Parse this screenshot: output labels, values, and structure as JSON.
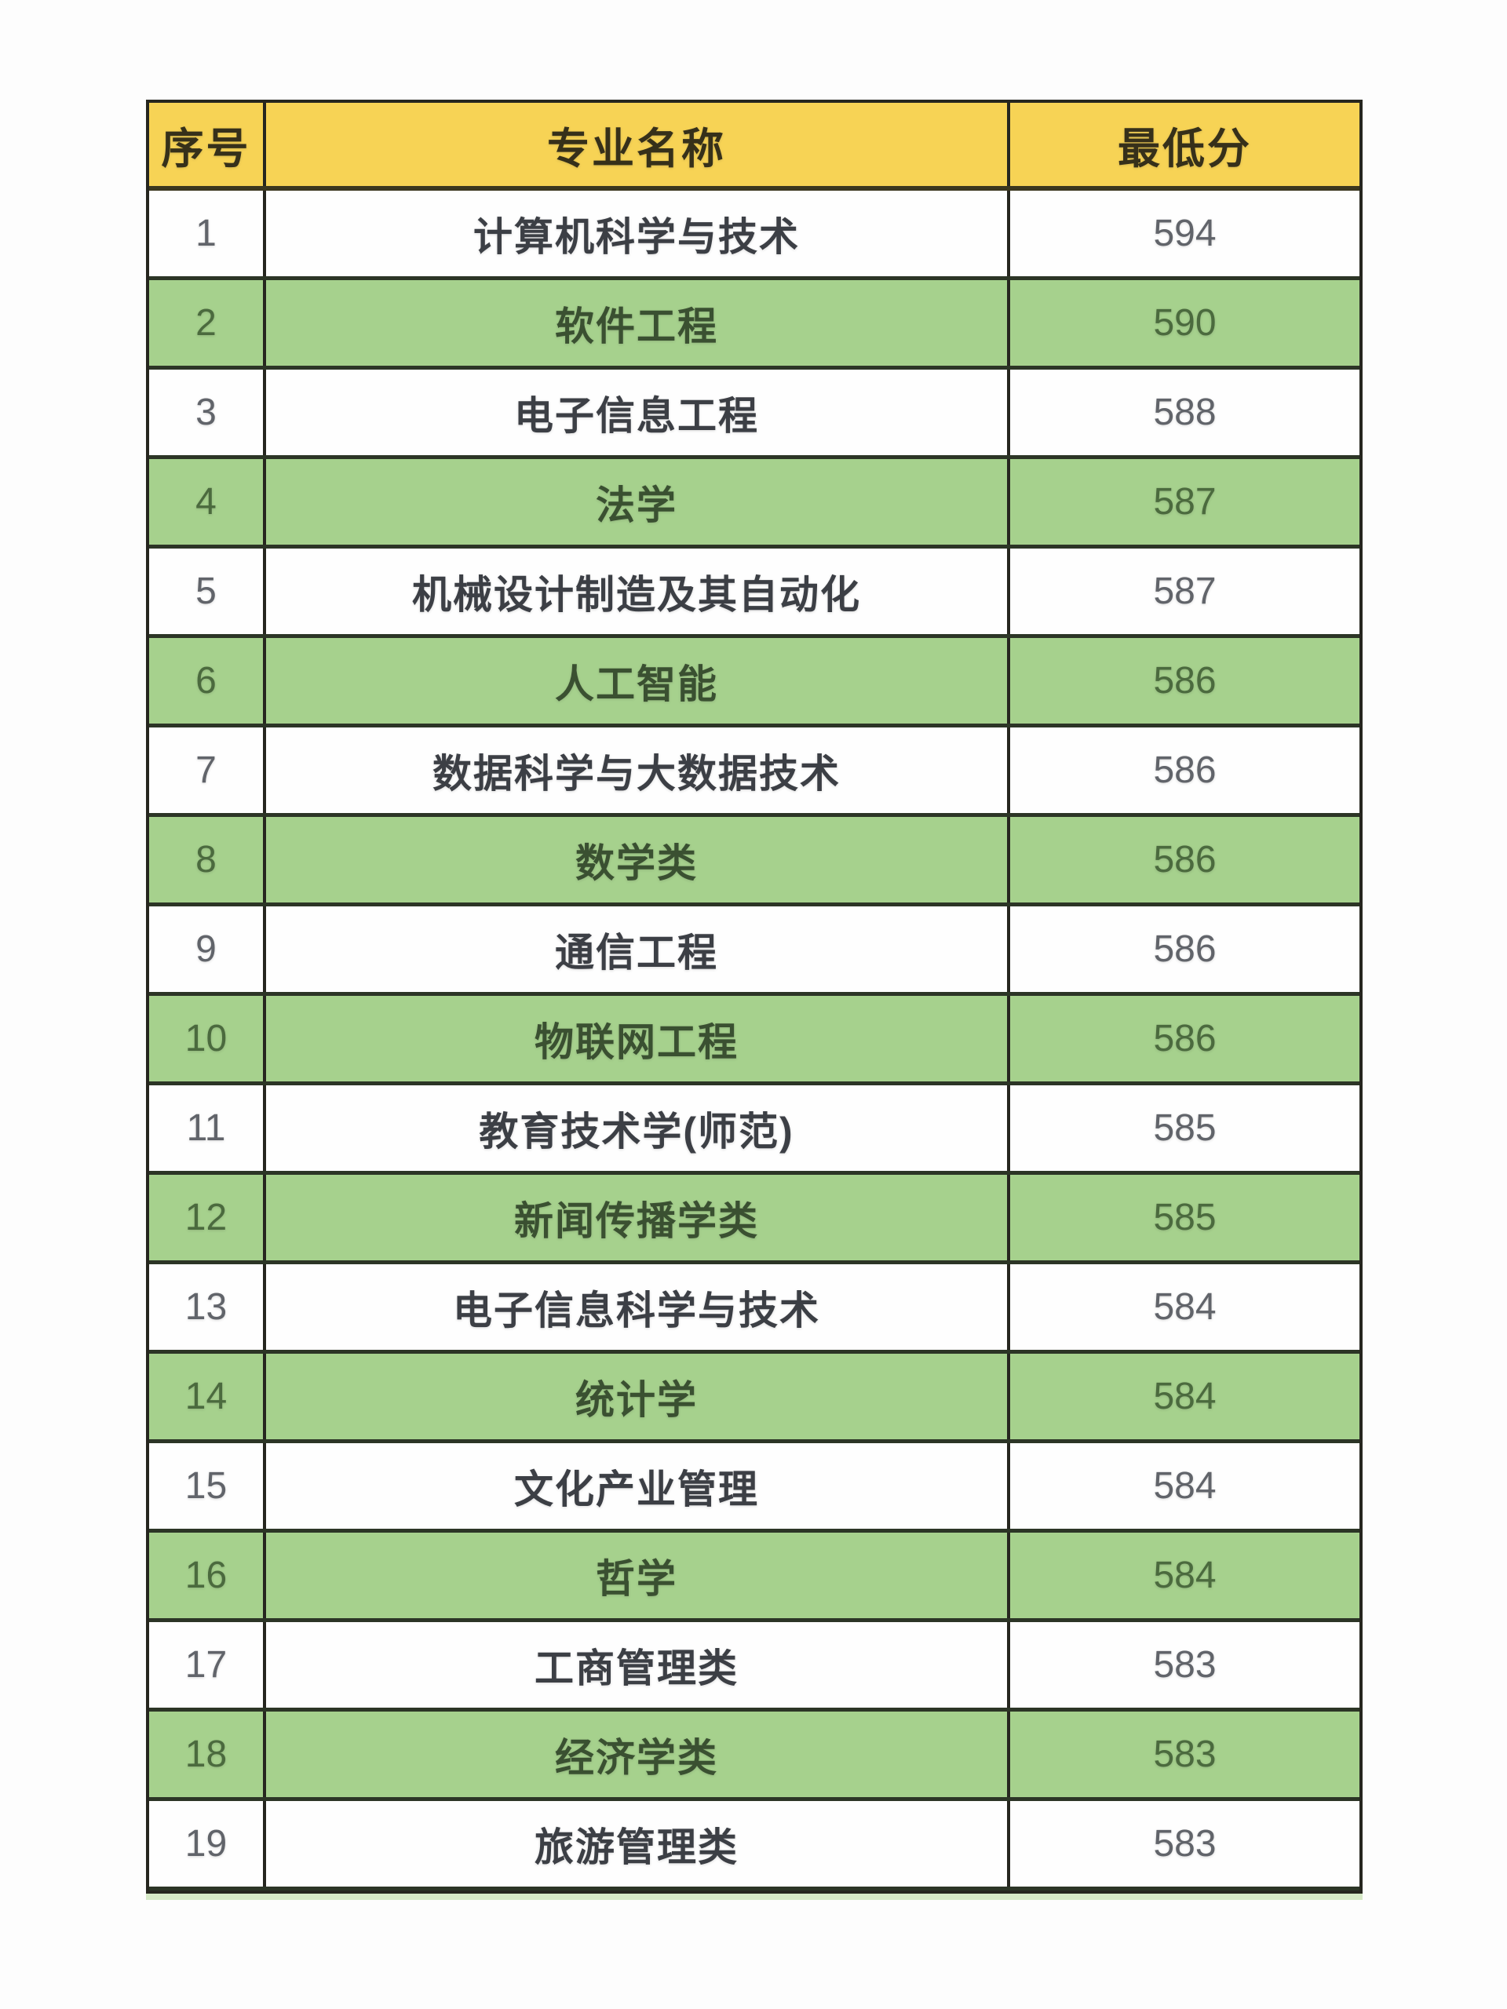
{
  "page": {
    "background": "#fdfdfd"
  },
  "table": {
    "headers": [
      "序号",
      "专业名称",
      "最低分"
    ],
    "rows": [
      {
        "no": "1",
        "major": "计算机科学与技术",
        "score": "594",
        "highlighted": false
      },
      {
        "no": "2",
        "major": "软件工程",
        "score": "590",
        "highlighted": true
      },
      {
        "no": "3",
        "major": "电子信息工程",
        "score": "588",
        "highlighted": false
      },
      {
        "no": "4",
        "major": "法学",
        "score": "587",
        "highlighted": true
      },
      {
        "no": "5",
        "major": "机械设计制造及其自动化",
        "score": "587",
        "highlighted": false
      },
      {
        "no": "6",
        "major": "人工智能",
        "score": "586",
        "highlighted": true
      },
      {
        "no": "7",
        "major": "数据科学与大数据技术",
        "score": "586",
        "highlighted": false
      },
      {
        "no": "8",
        "major": "数学类",
        "score": "586",
        "highlighted": true
      },
      {
        "no": "9",
        "major": "通信工程",
        "score": "586",
        "highlighted": false
      },
      {
        "no": "10",
        "major": "物联网工程",
        "score": "586",
        "highlighted": true
      },
      {
        "no": "11",
        "major": "教育技术学(师范)",
        "score": "585",
        "highlighted": false
      },
      {
        "no": "12",
        "major": "新闻传播学类",
        "score": "585",
        "highlighted": true
      },
      {
        "no": "13",
        "major": "电子信息科学与技术",
        "score": "584",
        "highlighted": false
      },
      {
        "no": "14",
        "major": "统计学",
        "score": "584",
        "highlighted": true
      },
      {
        "no": "15",
        "major": "文化产业管理",
        "score": "584",
        "highlighted": false
      },
      {
        "no": "16",
        "major": "哲学",
        "score": "584",
        "highlighted": true
      },
      {
        "no": "17",
        "major": "工商管理类",
        "score": "583",
        "highlighted": false
      },
      {
        "no": "18",
        "major": "经济学类",
        "score": "583",
        "highlighted": true
      },
      {
        "no": "19",
        "major": "旅游管理类",
        "score": "583",
        "highlighted": false
      }
    ],
    "colors": {
      "page_bg": "#fdfdfd",
      "header_bg": "#f7d355",
      "header_text": "#36301a",
      "green_row_bg": "#a6d18d",
      "white_row_bg": "#fefefe",
      "border": "#26261f",
      "row_divider": "#2c3526",
      "white_row_text": "#3c3f45",
      "green_row_text": "#3a5031",
      "white_num_text": "#61646a",
      "green_num_text": "#4b6a3e",
      "bottom_edge": "#cfe5bd"
    }
  },
  "chart_data": {
    "type": "table",
    "columns": [
      "序号",
      "专业名称",
      "最低分"
    ],
    "rows": [
      [
        1,
        "计算机科学与技术",
        594
      ],
      [
        2,
        "软件工程",
        590
      ],
      [
        3,
        "电子信息工程",
        588
      ],
      [
        4,
        "法学",
        587
      ],
      [
        5,
        "机械设计制造及其自动化",
        587
      ],
      [
        6,
        "人工智能",
        586
      ],
      [
        7,
        "数据科学与大数据技术",
        586
      ],
      [
        8,
        "数学类",
        586
      ],
      [
        9,
        "通信工程",
        586
      ],
      [
        10,
        "物联网工程",
        586
      ],
      [
        11,
        "教育技术学(师范)",
        585
      ],
      [
        12,
        "新闻传播学类",
        585
      ],
      [
        13,
        "电子信息科学与技术",
        584
      ],
      [
        14,
        "统计学",
        584
      ],
      [
        15,
        "文化产业管理",
        584
      ],
      [
        16,
        "哲学",
        584
      ],
      [
        17,
        "工商管理类",
        583
      ],
      [
        18,
        "经济学类",
        583
      ],
      [
        19,
        "旅游管理类",
        583
      ]
    ],
    "layout_hints": {
      "header_fill": "yellow",
      "zebra_fill": "alternate white / light-green starting white",
      "all_cells_centered": true,
      "grid": "dark solid borders around all cells"
    }
  }
}
